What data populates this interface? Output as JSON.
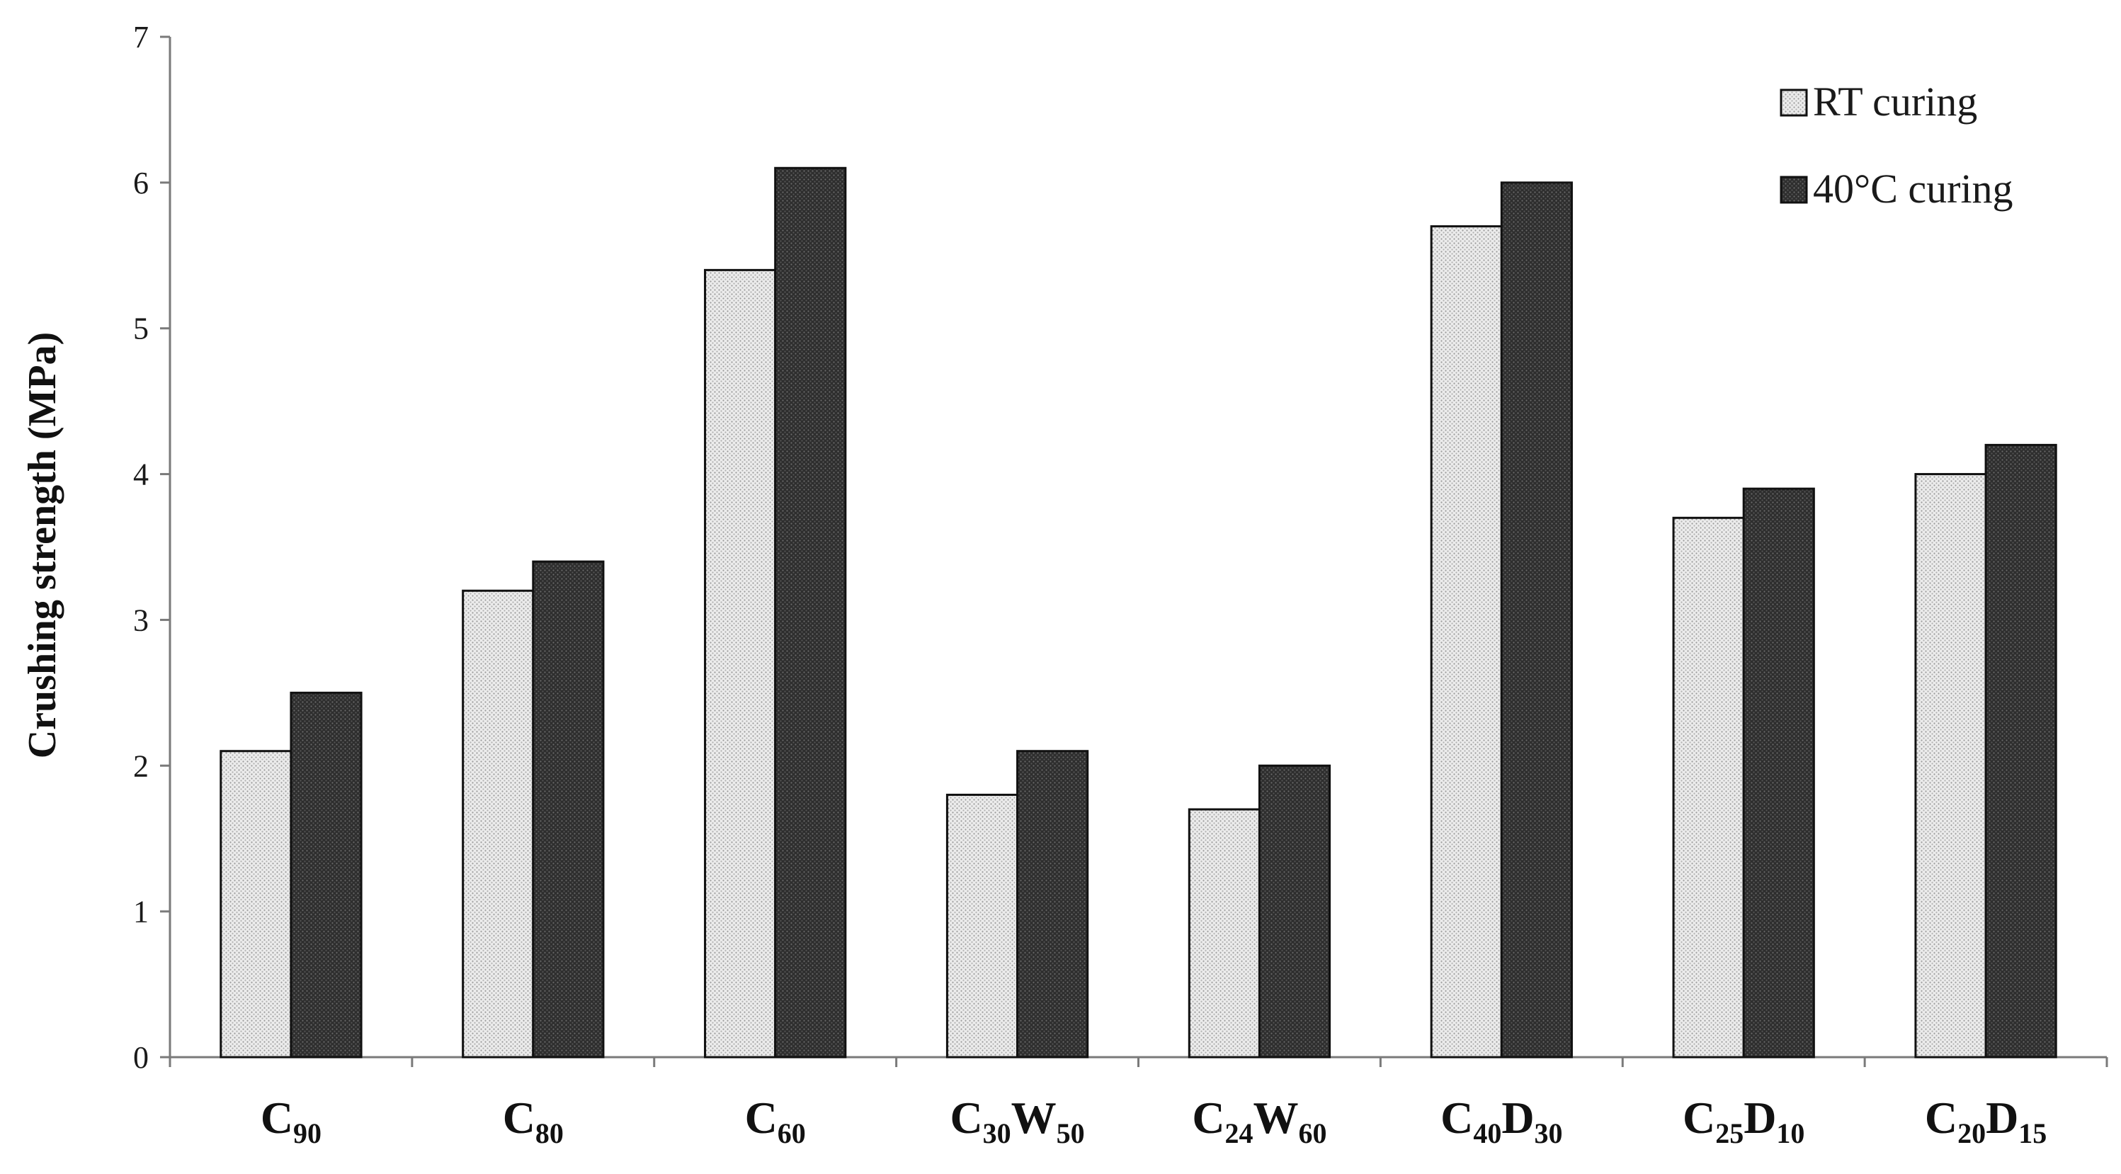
{
  "chart_data": {
    "type": "bar",
    "title": "",
    "xlabel": "",
    "ylabel": "Crushing strength  (MPa)",
    "ylim": [
      0,
      7
    ],
    "yticks": [
      "0",
      "1",
      "2",
      "3",
      "4",
      "5",
      "6",
      "7"
    ],
    "grid": false,
    "legend_position": "top-right",
    "categories": [
      {
        "base": "C",
        "sub1": "90",
        "mid": "",
        "sub2": ""
      },
      {
        "base": "C",
        "sub1": "80",
        "mid": "",
        "sub2": ""
      },
      {
        "base": "C",
        "sub1": "60",
        "mid": "",
        "sub2": ""
      },
      {
        "base": "C",
        "sub1": "30",
        "mid": "W",
        "sub2": "50"
      },
      {
        "base": "C",
        "sub1": "24",
        "mid": "W",
        "sub2": "60"
      },
      {
        "base": "C",
        "sub1": "40",
        "mid": "D",
        "sub2": "30"
      },
      {
        "base": "C",
        "sub1": "25",
        "mid": "D",
        "sub2": "10"
      },
      {
        "base": "C",
        "sub1": "20",
        "mid": "D",
        "sub2": "15"
      }
    ],
    "series": [
      {
        "name": "RT curing",
        "color": "#e6e6e6",
        "pattern": "dotted-light",
        "values": [
          2.1,
          3.2,
          5.4,
          1.8,
          1.7,
          5.7,
          3.7,
          4.0
        ]
      },
      {
        "name": "40°C curing",
        "color": "#3a3a3a",
        "pattern": "dotted-dark",
        "values": [
          2.5,
          3.4,
          6.1,
          2.1,
          2.0,
          6.0,
          3.9,
          4.2
        ]
      }
    ]
  }
}
